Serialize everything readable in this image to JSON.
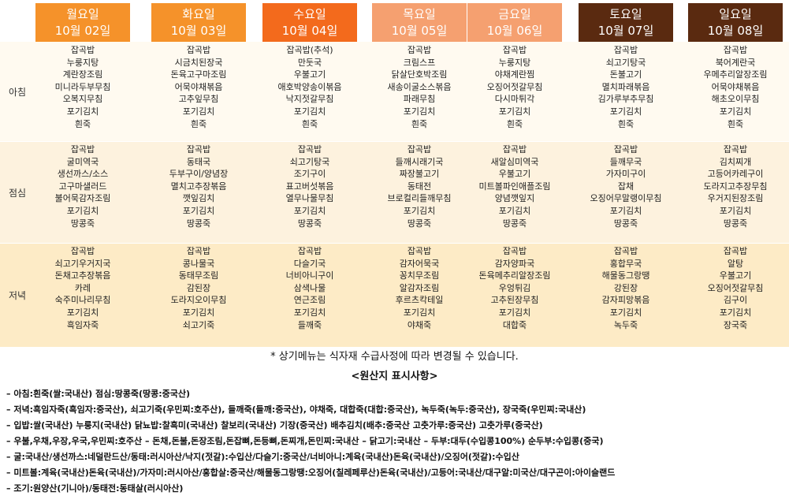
{
  "days": [
    {
      "day": "월요일",
      "date": "10월 02일",
      "color": "#f5922a",
      "breakfast": [
        "잡곡밥",
        "누룽지탕",
        "계란장조림",
        "미니라두부무침",
        "오복지무침",
        "포기김치",
        "흰죽"
      ],
      "lunch": [
        "잡곡밥",
        "굴미역국",
        "생선까스/소스",
        "고구마샐러드",
        "불어묵감자조림",
        "포기김치",
        "땅콩죽"
      ],
      "dinner": [
        "잡곡밥",
        "쇠고기우거지국",
        "돈채고추장볶음",
        "카레",
        "숙주미나리무침",
        "포기김치",
        "흑임자죽"
      ]
    },
    {
      "day": "화요일",
      "date": "10월 03일",
      "color": "#f5922a",
      "breakfast": [
        "잡곡밥",
        "시금치된장국",
        "돈육고구마조림",
        "어묵야채볶음",
        "고추잎무침",
        "포기김치",
        "흰죽"
      ],
      "lunch": [
        "잡곡밥",
        "동태국",
        "두부구이/양념장",
        "멸치고추장볶음",
        "깻잎김치",
        "포기김치",
        "땅콩죽"
      ],
      "dinner": [
        "잡곡밥",
        "콩나물국",
        "동태무조림",
        "감된장",
        "도라지오이무침",
        "포기김치",
        "쇠고기죽"
      ]
    },
    {
      "day": "수요일",
      "date": "10월 04일",
      "color": "#f36a1c",
      "breakfast": [
        "잡곡밥(추석)",
        "만둣국",
        "우불고기",
        "애호박양송이볶음",
        "낙지젓갈무침",
        "포기김치",
        "흰죽"
      ],
      "lunch": [
        "잡곡밥",
        "쇠고기탕국",
        "조기구이",
        "표고버섯볶음",
        "열무나물무침",
        "포기김치",
        "땅콩죽"
      ],
      "dinner": [
        "잡곡밥",
        "다슬기국",
        "너비아니구이",
        "삼색나물",
        "연근조림",
        "포기김치",
        "들깨죽"
      ]
    },
    {
      "day": "목요일",
      "date": "10월 05일",
      "color": "#f5a070",
      "breakfast": [
        "잡곡밥",
        "크림스프",
        "닭살단호박조림",
        "새송이굴소스볶음",
        "파래무침",
        "포기김치",
        "흰죽"
      ],
      "lunch": [
        "잡곡밥",
        "들깨시래기국",
        "짜장불고기",
        "동태전",
        "브로컬리들깨무침",
        "포기김치",
        "땅콩죽"
      ],
      "dinner": [
        "잡곡밥",
        "감자어묵국",
        "꽁치무조림",
        "알감자조림",
        "후르츠칵테일",
        "포기김치",
        "야채죽"
      ]
    },
    {
      "day": "금요일",
      "date": "10월 06일",
      "color": "#f5a070",
      "breakfast": [
        "잡곡밥",
        "누룽지탕",
        "야채계란찜",
        "오징어젓갈무침",
        "다시마튀각",
        "포기김치",
        "흰죽"
      ],
      "lunch": [
        "잡곡밥",
        "새알심미역국",
        "우불고기",
        "미트볼파인애플조림",
        "양념깻잎지",
        "포기김치",
        "땅콩죽"
      ],
      "dinner": [
        "잡곡밥",
        "감자양파국",
        "돈육메추리알장조림",
        "우엉튀김",
        "고추된장무침",
        "포기김치",
        "대합죽"
      ]
    },
    {
      "day": "토요일",
      "date": "10월 07일",
      "color": "#5a2a10",
      "breakfast": [
        "잡곡밥",
        "쇠고기탕국",
        "돈불고기",
        "멸치파래볶음",
        "김가루부추무침",
        "포기김치",
        "흰죽"
      ],
      "lunch": [
        "잡곡밥",
        "들깨무국",
        "가자미구이",
        "잡채",
        "오징어무말랭이무침",
        "포기김치",
        "땅콩죽"
      ],
      "dinner": [
        "잡곡밥",
        "홍합무국",
        "해물동그랑땡",
        "강된장",
        "감자피망볶음",
        "포기김치",
        "녹두죽"
      ]
    },
    {
      "day": "일요일",
      "date": "10월 08일",
      "color": "#5a2a10",
      "breakfast": [
        "잡곡밥",
        "북어계란국",
        "우메추리알장조림",
        "어묵야채볶음",
        "해초오이무침",
        "포기김치",
        "흰죽"
      ],
      "lunch": [
        "잡곡밥",
        "김치찌개",
        "고등어카레구이",
        "도라지고추장무침",
        "우거지된장조림",
        "포기김치",
        "땅콩죽"
      ],
      "dinner": [
        "잡곡밥",
        "알탕",
        "우불고기",
        "오징어젓갈무침",
        "김구이",
        "포기김치",
        "장국죽"
      ]
    }
  ],
  "meal_labels": {
    "breakfast": "아침",
    "lunch": "점심",
    "dinner": "저녁"
  },
  "notice": "* 상기메뉴는 식자재 수급사정에 따라 변경될 수 있습니다.",
  "origin_title": "<원산지 표시사항>",
  "origin_lines": [
    "– 아침:흰죽(쌀:국내산)  점심:땅콩죽(땅콩:중국산)",
    "– 저녁:흑임자죽(흑임자:중국산), 쇠고기죽(우민찌:호주산), 들깨죽(들깨:중국산), 야채죽,  대합죽(대합:중국산),  녹두죽(녹두:중국산),  장국죽(우민찌:국내산)",
    "– 입밥:쌀(국내산)  누룽지(국내산)  닭뇨밥:찰흑미(국내산)  찰보리(국내산)  기장(중국산)  배추김치(배추:중국산 고춧가루:중국산)  고춧가루(중국산)",
    "– 우불,우채,우장,우국,우민찌:호주산  –  돈채,돈불,돈장조림,돈잡뼈,돈등뼈,돈찌개,돈민찌:국내산  –  닭고기:국내산  –  두부:대두(수입콩100%)  순두부:수입콩(중국)",
    "– 굴:국내산/생선까스:네덜란드산/동태:러시아산/낙지(젓갈):수입산/다슬기:중국산/너비아니:계육(국내산)돈육(국내산)/오징어(젓갈):수입산",
    "– 미트볼:계육(국내산)돈육(국내산)/가자미:러시아산/홍합살:중국산/해물동그랑땡:오징어(칠레페루산)돈육(국내산)/고등어:국내산/대구알:미국산/대구곤이:아이슬랜드",
    "– 조기:원양산(기니아)/동태전:동태살(러시아산)"
  ]
}
